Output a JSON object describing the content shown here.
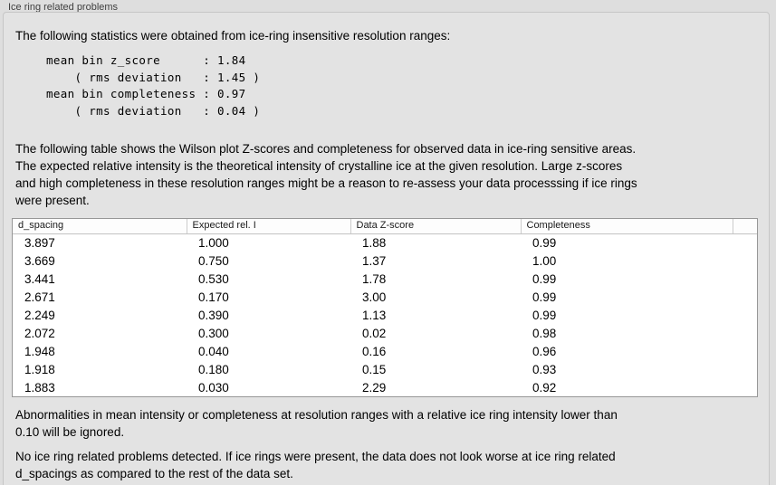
{
  "group": {
    "title": "Ice ring related problems"
  },
  "intro_text": "The following statistics were obtained from ice-ring insensitive resolution ranges:",
  "stats": {
    "lines": [
      "mean bin z_score      : 1.84",
      "    ( rms deviation   : 1.45 )",
      "mean bin completeness : 0.97",
      "    ( rms deviation   : 0.04 )"
    ],
    "mean_bin_z_score": "1.84",
    "z_score_rms_deviation": "1.45",
    "mean_bin_completeness": "0.97",
    "completeness_rms_deviation": "0.04"
  },
  "table_description": {
    "lines": [
      "The following table shows the Wilson plot Z-scores and completeness for observed data in ice-ring sensitive areas.",
      "The expected relative intensity is the theoretical intensity of crystalline ice at the given resolution. Large z-scores",
      "and high completeness in these resolution ranges might be a reason to re-assess your data processsing if ice rings",
      "were present."
    ]
  },
  "table": {
    "headers": [
      "d_spacing",
      "Expected rel. I",
      "Data Z-score",
      "Completeness",
      ""
    ],
    "rows": [
      [
        "3.897",
        "1.000",
        "1.88",
        "0.99"
      ],
      [
        "3.669",
        "0.750",
        "1.37",
        "1.00"
      ],
      [
        "3.441",
        "0.530",
        "1.78",
        "0.99"
      ],
      [
        "2.671",
        "0.170",
        "3.00",
        "0.99"
      ],
      [
        "2.249",
        "0.390",
        "1.13",
        "0.99"
      ],
      [
        "2.072",
        "0.300",
        "0.02",
        "0.98"
      ],
      [
        "1.948",
        "0.040",
        "0.16",
        "0.96"
      ],
      [
        "1.918",
        "0.180",
        "0.15",
        "0.93"
      ],
      [
        "1.883",
        "0.030",
        "2.29",
        "0.92"
      ]
    ]
  },
  "ignore_note": {
    "lines": [
      "Abnormalities in mean intensity or completeness at resolution ranges with a relative ice ring intensity lower than",
      "0.10 will be ignored."
    ]
  },
  "conclusion": {
    "lines": [
      "No ice ring related problems detected. If ice rings were present, the data does not look worse at ice ring related",
      "d_spacings as compared to the rest of the data set."
    ]
  },
  "colors": {
    "page_background": "#dedede",
    "panel_background": "#e3e3e3",
    "panel_border": "#c6c6c6",
    "table_background": "#ffffff",
    "table_border": "#979797",
    "header_divider": "#cccccc",
    "text": "#000000",
    "group_label_text": "#3f3f3f"
  }
}
